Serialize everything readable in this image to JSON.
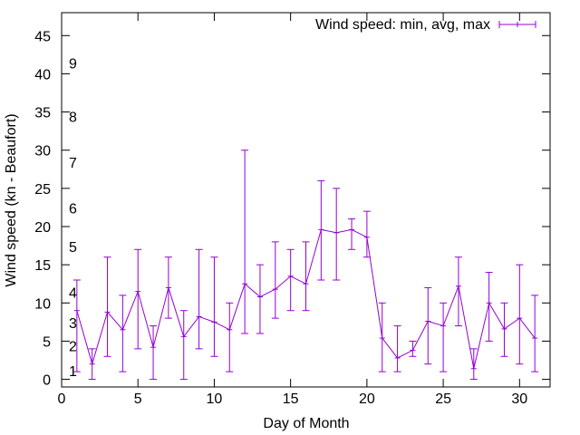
{
  "chart_data": {
    "type": "line",
    "title": "",
    "xlabel": "Day of Month",
    "ylabel": "Wind speed (kn - Beaufort)",
    "xlim": [
      0,
      32
    ],
    "ylim": [
      -1,
      48
    ],
    "x_ticks": [
      0,
      5,
      10,
      15,
      20,
      25,
      30
    ],
    "y_ticks": [
      0,
      5,
      10,
      15,
      20,
      25,
      30,
      35,
      40,
      45
    ],
    "beaufort_labels": [
      {
        "label": "1",
        "value": 1
      },
      {
        "label": "2",
        "value": 4.3
      },
      {
        "label": "3",
        "value": 7.3
      },
      {
        "label": "4",
        "value": 11.3
      },
      {
        "label": "5",
        "value": 17.3
      },
      {
        "label": "6",
        "value": 22.3
      },
      {
        "label": "7",
        "value": 28.3
      },
      {
        "label": "8",
        "value": 34.3
      },
      {
        "label": "9",
        "value": 41.3
      }
    ],
    "legend": {
      "position": "top-right"
    },
    "series": [
      {
        "name": "Wind speed: min, avg, max",
        "color": "#9400d3",
        "x": [
          1,
          2,
          3,
          4,
          5,
          6,
          7,
          8,
          9,
          10,
          11,
          12,
          13,
          14,
          15,
          16,
          17,
          18,
          19,
          20,
          21,
          22,
          23,
          24,
          25,
          26,
          27,
          28,
          29,
          30,
          31
        ],
        "avg": [
          9,
          2,
          8.8,
          6.5,
          11.5,
          4.2,
          12,
          5.6,
          8.2,
          7.5,
          6.5,
          12.5,
          10.8,
          11.8,
          13.5,
          12.5,
          19.6,
          19.2,
          19.6,
          18.6,
          5.4,
          2.8,
          3.8,
          7.6,
          7,
          12.2,
          1.4,
          10,
          6.6,
          8,
          5.4
        ],
        "min": [
          1,
          0,
          3,
          1,
          4,
          0,
          8,
          0,
          4,
          3,
          1,
          6,
          6,
          8,
          9,
          9,
          13,
          13,
          17,
          16,
          1,
          1,
          3,
          2,
          1,
          7,
          0,
          5,
          3,
          2,
          1
        ],
        "max": [
          13,
          4,
          16,
          11,
          17,
          7,
          16,
          9,
          17,
          16,
          10,
          30,
          15,
          18,
          17,
          18,
          26,
          25,
          21,
          22,
          10,
          7,
          5,
          12,
          10,
          16,
          4,
          14,
          10,
          15,
          11
        ]
      }
    ]
  }
}
